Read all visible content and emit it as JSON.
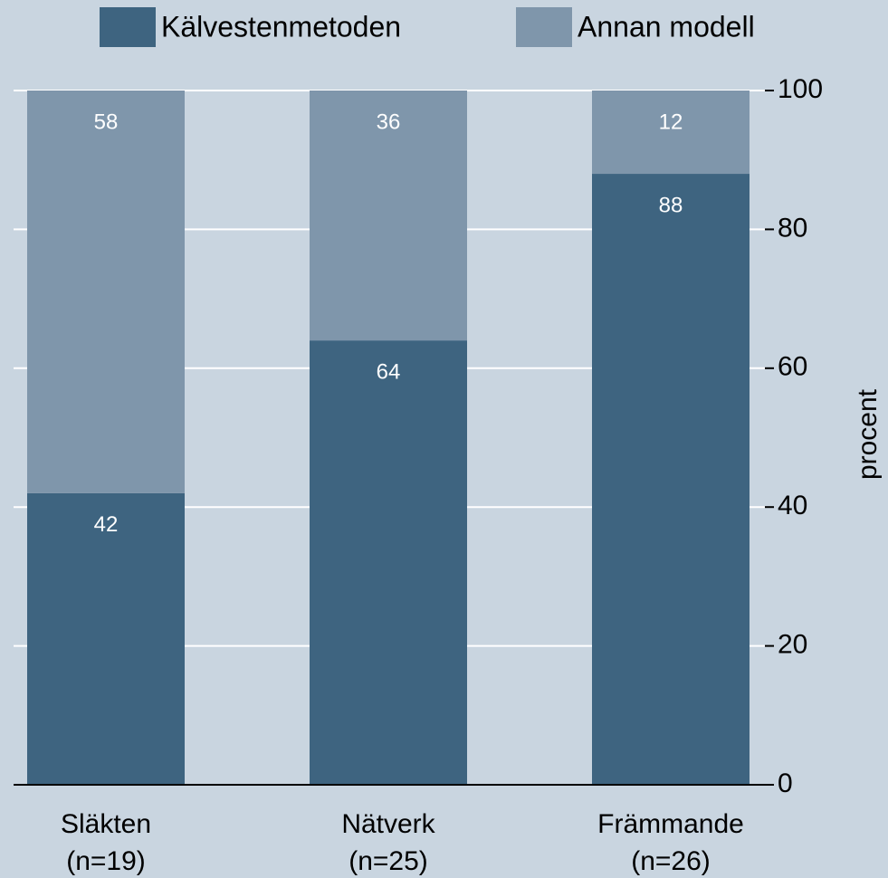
{
  "chart_data": {
    "type": "stacked_bar",
    "categories": [
      "Släkten",
      "Nätverk",
      "Främmande"
    ],
    "category_sublabels": [
      "(n=19)",
      "(n=25)",
      "(n=26)"
    ],
    "series": [
      {
        "name": "Kälvestenmetoden",
        "color": "#3e6480",
        "values": [
          42,
          64,
          88
        ]
      },
      {
        "name": "Annan modell",
        "color": "#7f96ab",
        "values": [
          58,
          36,
          12
        ]
      }
    ],
    "y_axis_label": "procent",
    "ylim": [
      0,
      100
    ],
    "yticks": [
      0,
      20,
      40,
      60,
      80,
      100
    ],
    "y_axis_side": "right",
    "grid": true,
    "legend": "top"
  }
}
